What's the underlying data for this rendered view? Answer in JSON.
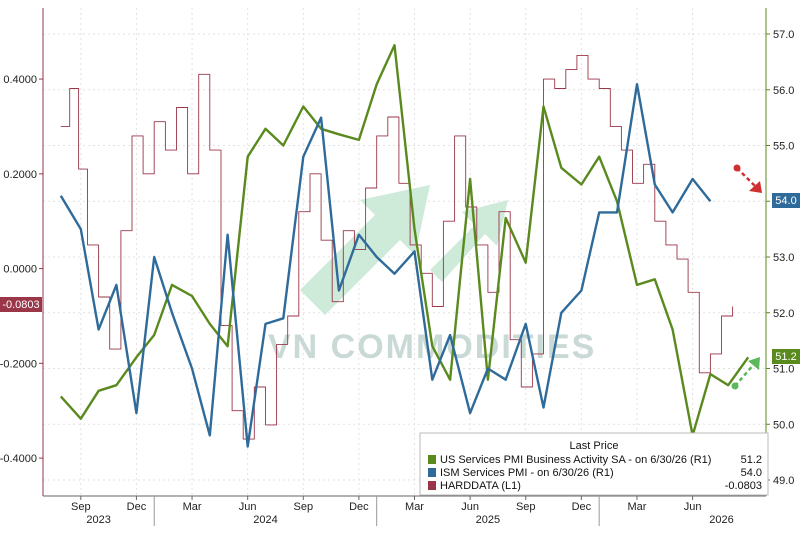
{
  "chart_data": {
    "type": "line",
    "title": "",
    "grid": true,
    "legend_position": "bottom-right",
    "x_ticks": [
      "Sep",
      "Dec",
      "Mar",
      "Jun",
      "Sep",
      "Dec",
      "Mar",
      "Jun",
      "Sep",
      "Dec",
      "Mar",
      "Jun"
    ],
    "year_labels": [
      "2023",
      "2024",
      "2025",
      "2026"
    ],
    "left_axis": {
      "ylim": [
        -0.48,
        0.55
      ],
      "ticks": [
        "0.4000",
        "0.2000",
        "0.0000",
        "-0.2000",
        "-0.4000"
      ]
    },
    "right_axis": {
      "ylim": [
        49.0,
        57.0
      ],
      "ticks": [
        "57.0",
        "56.0",
        "55.0",
        "54.0",
        "53.0",
        "52.0",
        "51.0",
        "50.0",
        "49.0"
      ]
    },
    "legend_title": "Last Price",
    "series": [
      {
        "name": "US Services PMI Business Activity SA - on 6/30/26 (R1)",
        "last_value": "51.2",
        "color": "#5a8a1e",
        "axis": "right",
        "points": [
          [
            2023.58,
            50.5
          ],
          [
            2023.67,
            50.1
          ],
          [
            2023.75,
            50.6
          ],
          [
            2023.83,
            50.7
          ],
          [
            2023.92,
            51.2
          ],
          [
            2024.0,
            51.6
          ],
          [
            2024.08,
            52.5
          ],
          [
            2024.17,
            52.3
          ],
          [
            2024.25,
            51.8
          ],
          [
            2024.33,
            51.4
          ],
          [
            2024.42,
            54.8
          ],
          [
            2024.5,
            55.3
          ],
          [
            2024.58,
            55.0
          ],
          [
            2024.67,
            55.7
          ],
          [
            2024.75,
            55.3
          ],
          [
            2024.83,
            55.2
          ],
          [
            2024.92,
            55.1
          ],
          [
            2025.0,
            56.1
          ],
          [
            2025.08,
            56.8
          ],
          [
            2025.17,
            53.5
          ],
          [
            2025.25,
            51.4
          ],
          [
            2025.33,
            50.8
          ],
          [
            2025.42,
            54.4
          ],
          [
            2025.5,
            50.8
          ],
          [
            2025.58,
            53.7
          ],
          [
            2025.67,
            52.9
          ],
          [
            2025.75,
            55.7
          ],
          [
            2025.83,
            54.6
          ],
          [
            2025.92,
            54.3
          ],
          [
            2026.0,
            54.8
          ],
          [
            2026.08,
            54.0
          ],
          [
            2026.17,
            52.5
          ],
          [
            2026.25,
            52.6
          ],
          [
            2026.33,
            51.7
          ],
          [
            2026.42,
            49.8
          ],
          [
            2026.5,
            50.9
          ],
          [
            2026.58,
            50.7
          ],
          [
            2026.67,
            51.2
          ]
        ]
      },
      {
        "name": "ISM Services PMI - on 6/30/26 (R1)",
        "last_value": "54.0",
        "color": "#2f6b9a",
        "axis": "right",
        "points": [
          [
            2023.58,
            54.1
          ],
          [
            2023.67,
            53.5
          ],
          [
            2023.75,
            51.7
          ],
          [
            2023.83,
            52.5
          ],
          [
            2023.92,
            50.2
          ],
          [
            2024.0,
            53.0
          ],
          [
            2024.08,
            52.0
          ],
          [
            2024.17,
            51.0
          ],
          [
            2024.25,
            49.8
          ],
          [
            2024.33,
            53.4
          ],
          [
            2024.42,
            49.6
          ],
          [
            2024.5,
            51.8
          ],
          [
            2024.58,
            51.9
          ],
          [
            2024.67,
            54.8
          ],
          [
            2024.75,
            55.5
          ],
          [
            2024.83,
            52.4
          ],
          [
            2024.92,
            53.4
          ],
          [
            2025.0,
            53.0
          ],
          [
            2025.08,
            52.7
          ],
          [
            2025.17,
            53.1
          ],
          [
            2025.25,
            50.8
          ],
          [
            2025.33,
            51.6
          ],
          [
            2025.42,
            50.2
          ],
          [
            2025.5,
            51.0
          ],
          [
            2025.58,
            50.8
          ],
          [
            2025.67,
            51.8
          ],
          [
            2025.75,
            50.3
          ],
          [
            2025.83,
            52.0
          ],
          [
            2025.92,
            52.4
          ],
          [
            2026.0,
            53.8
          ],
          [
            2026.08,
            53.8
          ],
          [
            2026.17,
            56.1
          ],
          [
            2026.25,
            54.3
          ],
          [
            2026.33,
            53.8
          ],
          [
            2026.42,
            54.4
          ],
          [
            2026.5,
            54.0
          ]
        ]
      },
      {
        "name": "HARDDATA (L1)",
        "last_value": "-0.0803",
        "color": "#9a3648",
        "axis": "left",
        "points": [
          [
            2023.58,
            0.3
          ],
          [
            2023.62,
            0.38
          ],
          [
            2023.66,
            0.21
          ],
          [
            2023.7,
            0.05
          ],
          [
            2023.75,
            -0.06
          ],
          [
            2023.8,
            -0.17
          ],
          [
            2023.85,
            0.08
          ],
          [
            2023.9,
            0.28
          ],
          [
            2023.95,
            0.2
          ],
          [
            2024.0,
            0.31
          ],
          [
            2024.05,
            0.25
          ],
          [
            2024.1,
            0.34
          ],
          [
            2024.15,
            0.2
          ],
          [
            2024.2,
            0.41
          ],
          [
            2024.25,
            0.25
          ],
          [
            2024.3,
            -0.12
          ],
          [
            2024.35,
            -0.3
          ],
          [
            2024.4,
            -0.36
          ],
          [
            2024.45,
            -0.25
          ],
          [
            2024.5,
            -0.33
          ],
          [
            2024.55,
            -0.16
          ],
          [
            2024.6,
            -0.1
          ],
          [
            2024.65,
            0.12
          ],
          [
            2024.7,
            0.2
          ],
          [
            2024.75,
            0.06
          ],
          [
            2024.8,
            -0.07
          ],
          [
            2024.85,
            0.08
          ],
          [
            2024.9,
            0.04
          ],
          [
            2024.95,
            0.17
          ],
          [
            2025.0,
            0.28
          ],
          [
            2025.05,
            0.32
          ],
          [
            2025.1,
            0.18
          ],
          [
            2025.15,
            0.05
          ],
          [
            2025.2,
            -0.01
          ],
          [
            2025.25,
            -0.08
          ],
          [
            2025.3,
            0.1
          ],
          [
            2025.35,
            0.28
          ],
          [
            2025.4,
            0.13
          ],
          [
            2025.45,
            0.05
          ],
          [
            2025.5,
            -0.05
          ],
          [
            2025.55,
            0.12
          ],
          [
            2025.6,
            -0.15
          ],
          [
            2025.65,
            -0.25
          ],
          [
            2025.7,
            -0.18
          ],
          [
            2025.75,
            0.4
          ],
          [
            2025.8,
            0.38
          ],
          [
            2025.85,
            0.42
          ],
          [
            2025.9,
            0.45
          ],
          [
            2025.95,
            0.4
          ],
          [
            2026.0,
            0.38
          ],
          [
            2026.05,
            0.3
          ],
          [
            2026.1,
            0.25
          ],
          [
            2026.15,
            0.18
          ],
          [
            2026.2,
            0.22
          ],
          [
            2026.25,
            0.1
          ],
          [
            2026.3,
            0.05
          ],
          [
            2026.35,
            0.02
          ],
          [
            2026.4,
            -0.05
          ],
          [
            2026.45,
            -0.22
          ],
          [
            2026.5,
            -0.18
          ],
          [
            2026.55,
            -0.1
          ],
          [
            2026.6,
            -0.08
          ]
        ]
      }
    ]
  },
  "tags": {
    "left": {
      "value": "-0.0803",
      "color": "#9a3648"
    },
    "right_blue": {
      "value": "54.0",
      "color": "#2f6b9a"
    },
    "right_green": {
      "value": "51.2",
      "color": "#5a8a1e"
    }
  },
  "watermark": "VN COMMODITIES"
}
